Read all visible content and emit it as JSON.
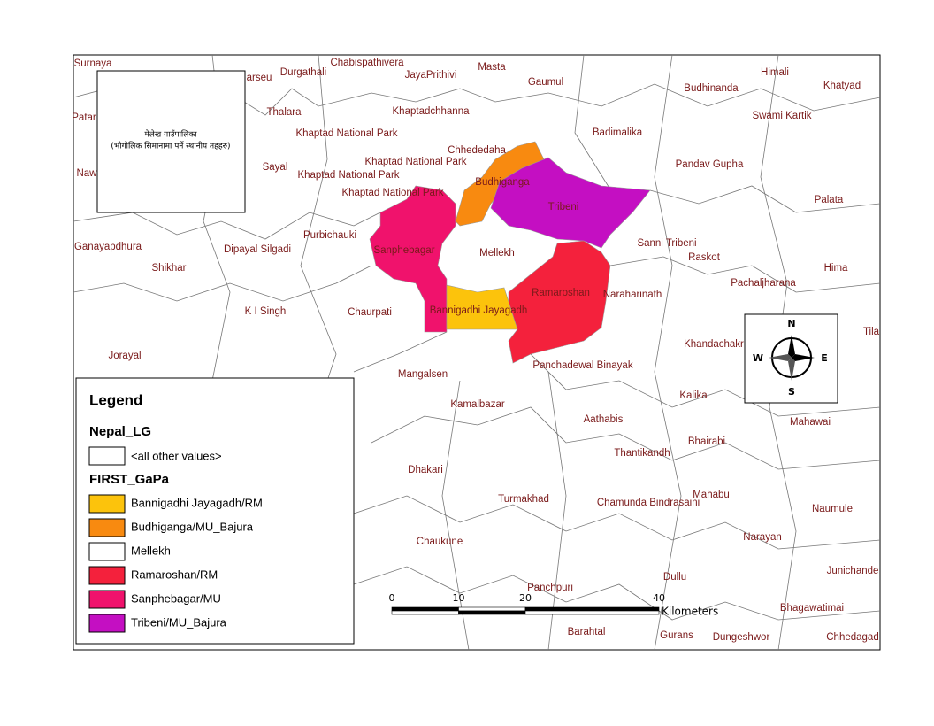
{
  "map": {
    "title_box": {
      "line1": "मेलेख गाउँपालिका",
      "line2": "(भौगोलिक सिमानामा पर्ने स्थानीय तहहरु)"
    },
    "places": [
      "Surnaya",
      "arseu",
      "Durgathali",
      "Chabispathivera",
      "JayaPrithivi",
      "Masta",
      "Gaumul",
      "Himali",
      "Khatyad",
      "Budhinanda",
      "Patar",
      "Thalara",
      "Khaptadchhanna",
      "Swami Kartik",
      "Khaptad National Park",
      "Badimalika",
      "Chhededaha",
      "Khaptad National Park",
      "Pandav Gupha",
      "Naw",
      "Sayal",
      "Khaptad National Park",
      "Budhiganga",
      "Tribeni",
      "Khaptad National Park",
      "Palata",
      "Purbichauki",
      "Ganayapdhura",
      "Dipayal Silgadi",
      "Sanphebagar",
      "Mellekh",
      "Sanni Tribeni",
      "Raskot",
      "Shikhar",
      "Hima",
      "Pachaljharana",
      "Ramaroshan",
      "Naraharinath",
      "K I Singh",
      "Chaurpati",
      "Bannigadhi Jayagadh",
      "Tila",
      "Khandachakr",
      "Jorayal",
      "Panchadewal Binayak",
      "Mangalsen",
      "Kalika",
      "Kamalbazar",
      "Aathabis",
      "Mahawai",
      "Bhairabi",
      "Thantikandh",
      "Dhakari",
      "Mahabu",
      "Turmakhad",
      "Chamunda Bindrasaini",
      "Naumule",
      "Narayan",
      "Chaukune",
      "Dullu",
      "Junichande",
      "Panchpuri",
      "Bhagawatimai",
      "Barahtal",
      "Gurans",
      "Dungeshwor",
      "Chhedagad"
    ],
    "compass": {
      "n": "N",
      "s": "S",
      "e": "E",
      "w": "W"
    },
    "scale": {
      "ticks": [
        0,
        10,
        20,
        40
      ],
      "unit": "Kilometers"
    },
    "legend": {
      "title": "Legend",
      "layer1": "Nepal_LG",
      "other": "<all other values>",
      "layer2": "FIRST_GaPa",
      "items": [
        {
          "name": "Bannigadhi Jayagadh/RM",
          "color": "#fcc30c"
        },
        {
          "name": "Budhiganga/MU_Bajura",
          "color": "#f88a10"
        },
        {
          "name": "Mellekh",
          "color": "#ffffff"
        },
        {
          "name": "Ramaroshan/RM",
          "color": "#f4213c"
        },
        {
          "name": "Sanphebagar/MU",
          "color": "#f0126c"
        },
        {
          "name": "Tribeni/MU_Bajura",
          "color": "#c40fc2"
        }
      ]
    }
  }
}
